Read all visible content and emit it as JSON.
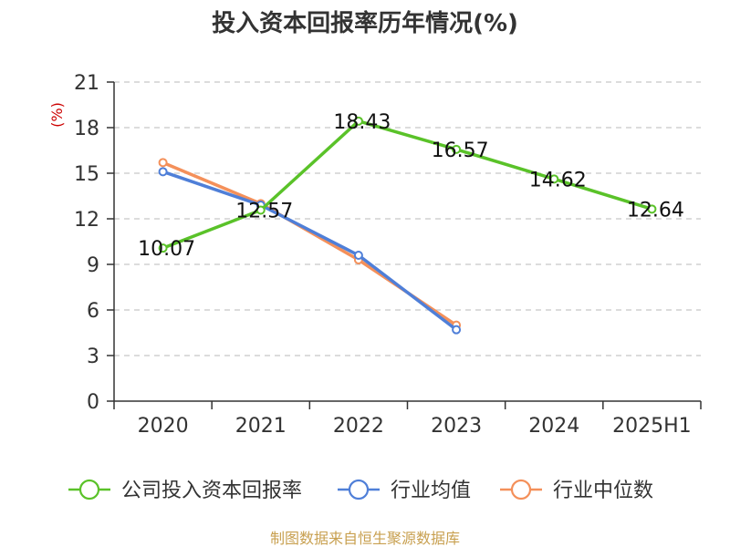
{
  "chart_data": {
    "type": "line",
    "title": "投入资本回报率历年情况(%)",
    "ylabel_unit": "(%)",
    "categories": [
      "2020",
      "2021",
      "2022",
      "2023",
      "2024",
      "2025H1"
    ],
    "ylim": [
      0,
      21
    ],
    "yticks": [
      0,
      3,
      6,
      9,
      12,
      15,
      18,
      21
    ],
    "grid": true,
    "legend_position": "bottom",
    "series": [
      {
        "name": "公司投入资本回报率",
        "color": "#5ac229",
        "values": [
          10.07,
          12.57,
          18.43,
          16.57,
          14.62,
          12.64
        ],
        "labels": [
          "10.07",
          "12.57",
          "18.43",
          "16.57",
          "14.62",
          "12.64"
        ]
      },
      {
        "name": "行业均值",
        "color": "#4f7fd8",
        "values": [
          15.1,
          12.9,
          9.6,
          4.7,
          null,
          null
        ]
      },
      {
        "name": "行业中位数",
        "color": "#f4905a",
        "values": [
          15.7,
          13.0,
          9.3,
          5.0,
          null,
          null
        ]
      }
    ]
  },
  "footer": {
    "source": "制图数据来自恒生聚源数据库"
  }
}
